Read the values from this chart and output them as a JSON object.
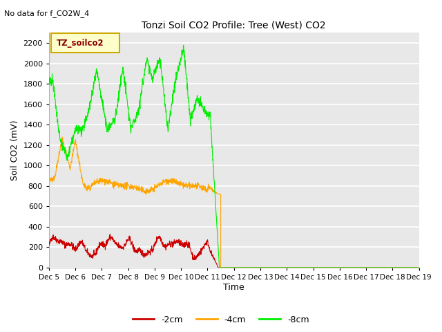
{
  "title": "Tonzi Soil CO2 Profile: Tree (West) CO2",
  "no_data_text": "No data for f_CO2W_4",
  "ylabel": "Soil CO2 (mV)",
  "xlabel": "Time",
  "ylim": [
    0,
    2300
  ],
  "yticks": [
    0,
    200,
    400,
    600,
    800,
    1000,
    1200,
    1400,
    1600,
    1800,
    2000,
    2200
  ],
  "legend_label": "TZ_soilco2",
  "legend_box_color": "#FFFFCC",
  "legend_box_edge": "#CCAA00",
  "legend_text_color": "#880000",
  "bg_color": "#FFFFFF",
  "plot_bg_color": "#E8E8E8",
  "line_colors": {
    "2cm": "#CC0000",
    "4cm": "#FFA500",
    "8cm": "#00EE00"
  },
  "x_tick_labels": [
    "Dec 5",
    "Dec 6",
    "Dec 7",
    "Dec 8",
    "Dec 9",
    "Dec 10",
    "Dec 11",
    "Dec 12",
    "Dec 13",
    "Dec 14",
    "Dec 15",
    "Dec 16",
    "Dec 17",
    "Dec 18",
    "Dec 19"
  ],
  "x_tick_positions": [
    0,
    1,
    2,
    3,
    4,
    5,
    6,
    7,
    8,
    9,
    10,
    11,
    12,
    13,
    14
  ]
}
